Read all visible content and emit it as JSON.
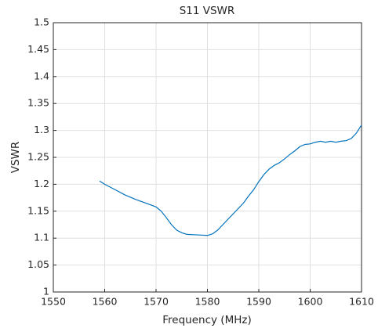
{
  "chart_data": {
    "type": "line",
    "title": "S11 VSWR",
    "x_label": "Frequency (MHz)",
    "y_label": "VSWR",
    "x": [
      1559,
      1560,
      1562,
      1564,
      1566,
      1568,
      1570,
      1571,
      1572,
      1573,
      1574,
      1575,
      1576,
      1578,
      1580,
      1581,
      1582,
      1583,
      1584,
      1585,
      1586,
      1587,
      1588,
      1589,
      1590,
      1591,
      1592,
      1593,
      1594,
      1595,
      1596,
      1597,
      1598,
      1599,
      1600,
      1601,
      1602,
      1603,
      1604,
      1605,
      1606,
      1607,
      1608,
      1609,
      1610
    ],
    "series": [
      {
        "name": "S11",
        "color": "#0072bd",
        "values": [
          1.206,
          1.2,
          1.19,
          1.18,
          1.172,
          1.165,
          1.158,
          1.15,
          1.138,
          1.125,
          1.115,
          1.11,
          1.107,
          1.106,
          1.105,
          1.108,
          1.115,
          1.125,
          1.135,
          1.145,
          1.155,
          1.165,
          1.178,
          1.19,
          1.205,
          1.218,
          1.228,
          1.235,
          1.24,
          1.247,
          1.255,
          1.262,
          1.27,
          1.274,
          1.275,
          1.278,
          1.28,
          1.278,
          1.28,
          1.278,
          1.28,
          1.281,
          1.285,
          1.295,
          1.31
        ]
      }
    ],
    "xlim": [
      1550,
      1610
    ],
    "xticks": [
      1550,
      1560,
      1570,
      1580,
      1590,
      1600,
      1610
    ],
    "ylim": [
      1,
      1.5
    ],
    "yticks": [
      1,
      1.05,
      1.1,
      1.15,
      1.2,
      1.25,
      1.3,
      1.35,
      1.4,
      1.45,
      1.5
    ],
    "grid": true
  }
}
